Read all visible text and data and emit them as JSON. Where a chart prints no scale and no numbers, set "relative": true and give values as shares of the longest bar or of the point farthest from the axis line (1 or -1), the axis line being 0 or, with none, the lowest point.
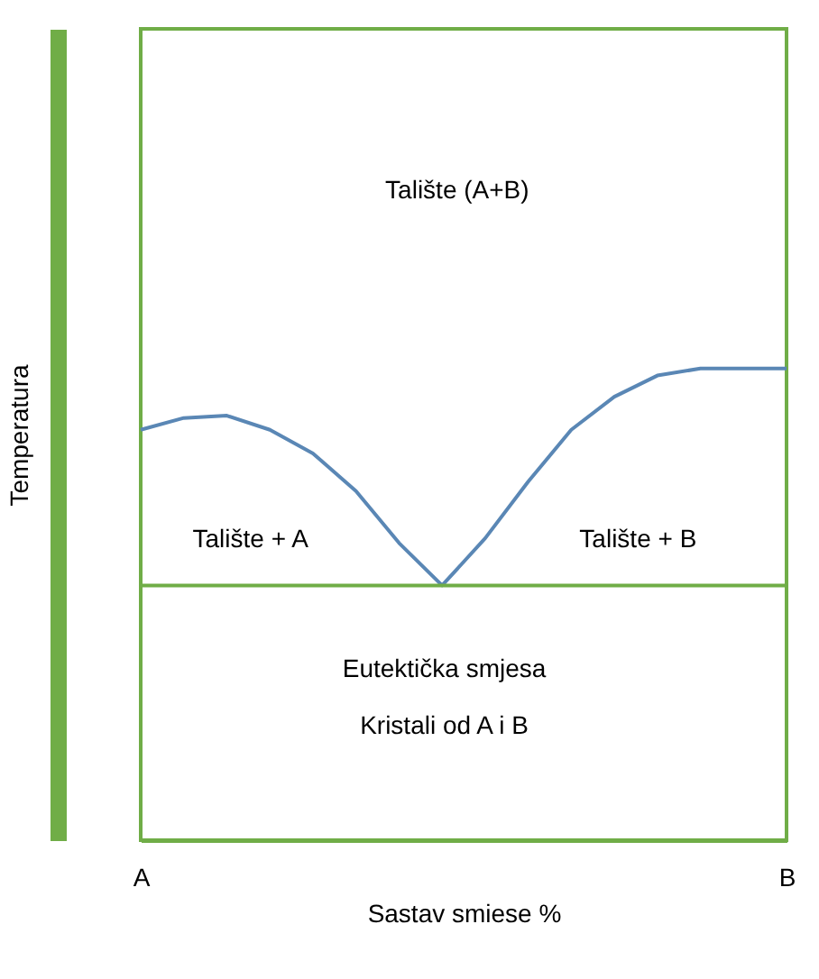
{
  "chart_data": {
    "type": "line",
    "relative": true,
    "xlabel": "Sastav smiese %",
    "ylabel": "Temperatura",
    "categories": [
      "A",
      null,
      null,
      null,
      null,
      null,
      null,
      null,
      null,
      null,
      null,
      null,
      null,
      null,
      null,
      "B"
    ],
    "tick_labels": "x",
    "grid": false,
    "legend": false,
    "marker": "none",
    "line_style": "solid",
    "series": [
      {
        "color": "#5a87b5",
        "values": [
          0.87,
          0.895,
          0.9,
          0.87,
          0.82,
          0.74,
          0.63,
          0.54,
          0.64,
          0.76,
          0.87,
          0.94,
          0.985,
          1.0,
          1.0,
          1.0
        ]
      }
    ],
    "ref_lines": [
      {
        "axis": "y",
        "value": 0.54,
        "color": "#70ad47"
      }
    ],
    "annotations": [
      "Talište (A+B)",
      "Talište + A",
      "Talište + B",
      "Eutektička smjesa",
      "Kristali od A i B"
    ]
  }
}
